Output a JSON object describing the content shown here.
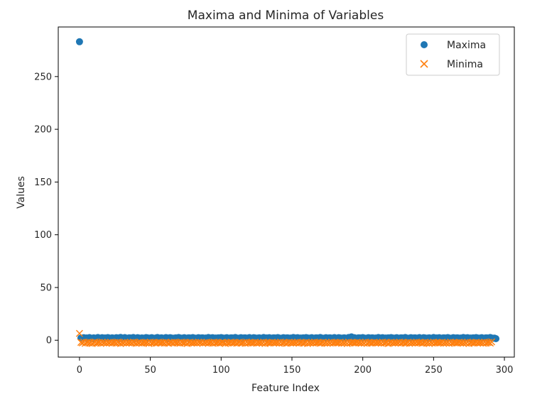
{
  "chart_data": {
    "type": "scatter",
    "title": "Maxima and Minima of Variables",
    "xlabel": "Feature Index",
    "ylabel": "Values",
    "xlim": [
      -15,
      307
    ],
    "ylim": [
      -16,
      297
    ],
    "xticks": [
      0,
      50,
      100,
      150,
      200,
      250,
      300
    ],
    "yticks": [
      0,
      50,
      100,
      150,
      200,
      250
    ],
    "grid": false,
    "legend_position": "top-right",
    "n_features": 293,
    "series": [
      {
        "name": "Maxima",
        "marker": "circle",
        "color": "#1f77b4",
        "values": [
          283.0,
          2.1,
          1.8,
          2.4,
          1.9,
          2.2,
          1.7,
          2.5,
          2.0,
          1.6,
          2.3,
          1.9,
          2.1,
          2.6,
          1.8,
          2.0,
          2.4,
          1.7,
          2.2,
          1.9,
          2.5,
          2.1,
          1.8,
          2.3,
          2.0,
          1.6,
          2.4,
          2.2,
          1.9,
          2.7,
          2.1,
          1.8,
          2.5,
          2.0,
          1.7,
          2.3,
          2.2,
          1.9,
          2.6,
          2.0,
          1.8,
          2.4,
          2.1,
          1.7,
          2.2,
          2.0,
          1.9,
          2.5,
          2.3,
          1.8,
          2.1,
          2.4,
          2.0,
          1.6,
          2.2,
          2.6,
          1.9,
          2.1,
          2.3,
          1.8,
          2.0,
          2.5,
          2.2,
          1.7,
          2.4,
          2.1,
          1.9,
          2.0,
          2.3,
          1.8,
          2.6,
          2.2,
          1.9,
          2.1,
          2.4,
          1.7,
          2.0,
          2.3,
          2.2,
          1.8,
          2.5,
          2.1,
          1.9,
          2.0,
          2.4,
          1.6,
          2.2,
          2.3,
          1.8,
          2.1,
          2.0,
          2.6,
          1.9,
          2.2,
          2.4,
          1.7,
          2.1,
          2.0,
          2.3,
          1.8,
          2.5,
          2.2,
          1.9,
          2.1,
          2.4,
          1.8,
          2.0,
          2.3,
          2.2,
          1.7,
          2.6,
          2.1,
          1.9,
          2.0,
          2.4,
          1.8,
          2.2,
          2.3,
          1.9,
          2.1,
          2.5,
          1.7,
          2.0,
          2.4,
          2.2,
          1.8,
          2.1,
          2.3,
          1.9,
          2.0,
          2.6,
          1.8,
          2.2,
          2.1,
          2.4,
          1.7,
          2.0,
          2.3,
          2.2,
          1.9,
          2.5,
          2.1,
          1.8,
          2.0,
          2.4,
          1.9,
          2.2,
          2.3,
          1.8,
          2.1,
          2.0,
          2.6,
          1.9,
          2.2,
          2.4,
          1.7,
          2.1,
          2.0,
          2.3,
          1.8,
          2.5,
          2.2,
          1.9,
          2.1,
          2.4,
          1.8,
          2.0,
          2.3,
          2.2,
          1.7,
          2.6,
          2.1,
          1.9,
          2.0,
          2.4,
          1.8,
          2.2,
          2.3,
          1.9,
          2.1,
          2.5,
          1.7,
          2.0,
          2.4,
          2.2,
          1.8,
          2.1,
          2.3,
          1.9,
          2.0,
          2.6,
          1.8,
          3.2,
          2.1,
          2.4,
          1.7,
          2.0,
          2.3,
          2.2,
          1.9,
          2.5,
          2.1,
          1.8,
          2.0,
          2.4,
          1.9,
          2.2,
          2.3,
          1.8,
          2.1,
          2.0,
          2.6,
          1.9,
          2.2,
          2.4,
          1.7,
          2.1,
          2.0,
          2.3,
          1.8,
          2.5,
          2.2,
          1.9,
          2.1,
          2.4,
          1.8,
          2.0,
          2.3,
          2.2,
          1.7,
          2.6,
          2.1,
          1.9,
          2.0,
          2.4,
          1.8,
          2.2,
          2.3,
          1.9,
          2.1,
          2.5,
          1.7,
          2.0,
          2.4,
          2.2,
          1.8,
          2.1,
          2.3,
          1.9,
          2.0,
          2.6,
          1.8,
          2.2,
          2.1,
          2.4,
          1.7,
          2.0,
          2.3,
          2.2,
          1.9,
          2.5,
          2.1,
          1.8,
          2.0,
          2.4,
          1.9,
          2.2,
          2.3,
          1.8,
          2.1,
          2.0,
          2.6,
          1.9,
          2.2,
          2.4,
          1.7,
          2.1,
          2.0,
          2.3,
          1.8,
          2.5,
          2.2,
          1.9,
          2.1,
          2.4,
          1.8,
          2.0,
          2.3,
          2.2,
          1.7,
          2.6,
          2.1,
          1.9,
          2.0,
          1.5
        ]
      },
      {
        "name": "Minima",
        "marker": "x",
        "color": "#ff7f0e",
        "values": [
          6.5,
          -2.0,
          -2.5,
          -1.8,
          -3.0,
          -2.2,
          -1.9,
          -2.7,
          -2.1,
          -3.1,
          -2.4,
          -1.7,
          -2.8,
          -2.3,
          -2.0,
          -2.9,
          -1.8,
          -2.6,
          -2.2,
          -3.0,
          -2.1,
          -2.5,
          -1.9,
          -2.7,
          -2.3,
          -2.0,
          -2.8,
          -1.8,
          -2.4,
          -3.1,
          -2.2,
          -2.6,
          -1.9,
          -2.9,
          -2.1,
          -2.5,
          -2.0,
          -2.7,
          -1.8,
          -2.3,
          -3.0,
          -2.2,
          -2.6,
          -1.9,
          -2.8,
          -2.4,
          -2.0,
          -2.5,
          -2.1,
          -3.1,
          -1.8,
          -2.7,
          -2.3,
          -2.0,
          -2.9,
          -2.2,
          -1.9,
          -2.6,
          -2.4,
          -2.1,
          -2.8,
          -1.8,
          -2.5,
          -3.0,
          -2.2,
          -2.0,
          -2.7,
          -1.9,
          -2.3,
          -2.6,
          -2.1,
          -2.9,
          -1.8,
          -2.4,
          -2.5,
          -2.0,
          -3.1,
          -2.2,
          -1.9,
          -2.7,
          -2.3,
          -2.6,
          -2.1,
          -2.8,
          -1.8,
          -2.4,
          -2.0,
          -3.0,
          -2.2,
          -2.5,
          -1.9,
          -2.7,
          -2.3,
          -2.1,
          -2.9,
          -1.8,
          -2.6,
          -2.4,
          -2.0,
          -2.8,
          -2.2,
          -1.9,
          -2.5,
          -3.1,
          -2.1,
          -2.7,
          -2.3,
          -1.8,
          -2.6,
          -2.4,
          -2.0,
          -2.9,
          -2.2,
          -1.9,
          -2.8,
          -2.5,
          -2.1,
          -3.0,
          -1.8,
          -2.7,
          -2.3,
          -2.0,
          -2.6,
          -2.4,
          -1.9,
          -2.9,
          -2.2,
          -2.5,
          -2.1,
          -2.8,
          -1.8,
          -3.1,
          -2.3,
          -2.0,
          -2.7,
          -2.4,
          -1.9,
          -2.6,
          -2.2,
          -2.5,
          -2.1,
          -2.9,
          -1.8,
          -2.8,
          -2.3,
          -2.0,
          -3.0,
          -2.4,
          -1.9,
          -2.7,
          -2.2,
          -2.6,
          -2.1,
          -2.5,
          -1.8,
          -2.9,
          -2.3,
          -2.0,
          -2.8,
          -2.4,
          -1.9,
          -3.1,
          -2.2,
          -2.7,
          -2.1,
          -2.6,
          -1.8,
          -2.5,
          -2.3,
          -2.0,
          -2.9,
          -2.4,
          -1.9,
          -2.8,
          -2.2,
          -3.0,
          -2.1,
          -2.7,
          -1.8,
          -2.6,
          -2.3,
          -2.0,
          -2.5,
          -2.4,
          -1.9,
          -2.9,
          -2.2,
          -2.8,
          -2.1,
          -3.1,
          -1.8,
          -2.7,
          -2.3,
          -2.0,
          -2.6,
          -2.4,
          -1.9,
          -2.5,
          -2.2,
          -2.9,
          -2.1,
          -2.8,
          -1.8,
          -3.0,
          -2.3,
          -2.0,
          -2.7,
          -2.4,
          -1.9,
          -2.6,
          -2.2,
          -2.5,
          -2.1,
          -2.9,
          -1.8,
          -2.8,
          -2.3,
          -2.0,
          -3.1,
          -2.4,
          -1.9,
          -2.7,
          -2.2,
          -2.6,
          -2.1,
          -2.5,
          -1.8,
          -2.9,
          -2.3,
          -2.0,
          -2.8,
          -2.4,
          -1.9,
          -3.0,
          -2.2,
          -2.7,
          -2.1,
          -2.6,
          -1.8,
          -2.5,
          -2.3,
          -2.0,
          -2.9,
          -2.4,
          -1.9,
          -2.8,
          -2.2,
          -3.1,
          -2.1,
          -2.7,
          -1.8,
          -2.6,
          -2.3,
          -2.0,
          -2.5,
          -2.4,
          -1.9,
          -2.9,
          -2.2,
          -2.8,
          -2.1,
          -3.0,
          -1.8,
          -2.7,
          -2.3,
          -2.0,
          -2.6,
          -2.4,
          -1.9,
          -2.5,
          -2.2,
          -2.9,
          -2.1,
          -2.8,
          -1.8,
          -3.1,
          -2.3,
          -2.0,
          -2.7,
          -2.4,
          -1.9,
          -2.6,
          -2.2,
          -2.5,
          -2.1,
          -2.9,
          -1.8,
          -2.8,
          -2.3,
          -2.0,
          -2.7,
          -1.5
        ]
      }
    ]
  }
}
